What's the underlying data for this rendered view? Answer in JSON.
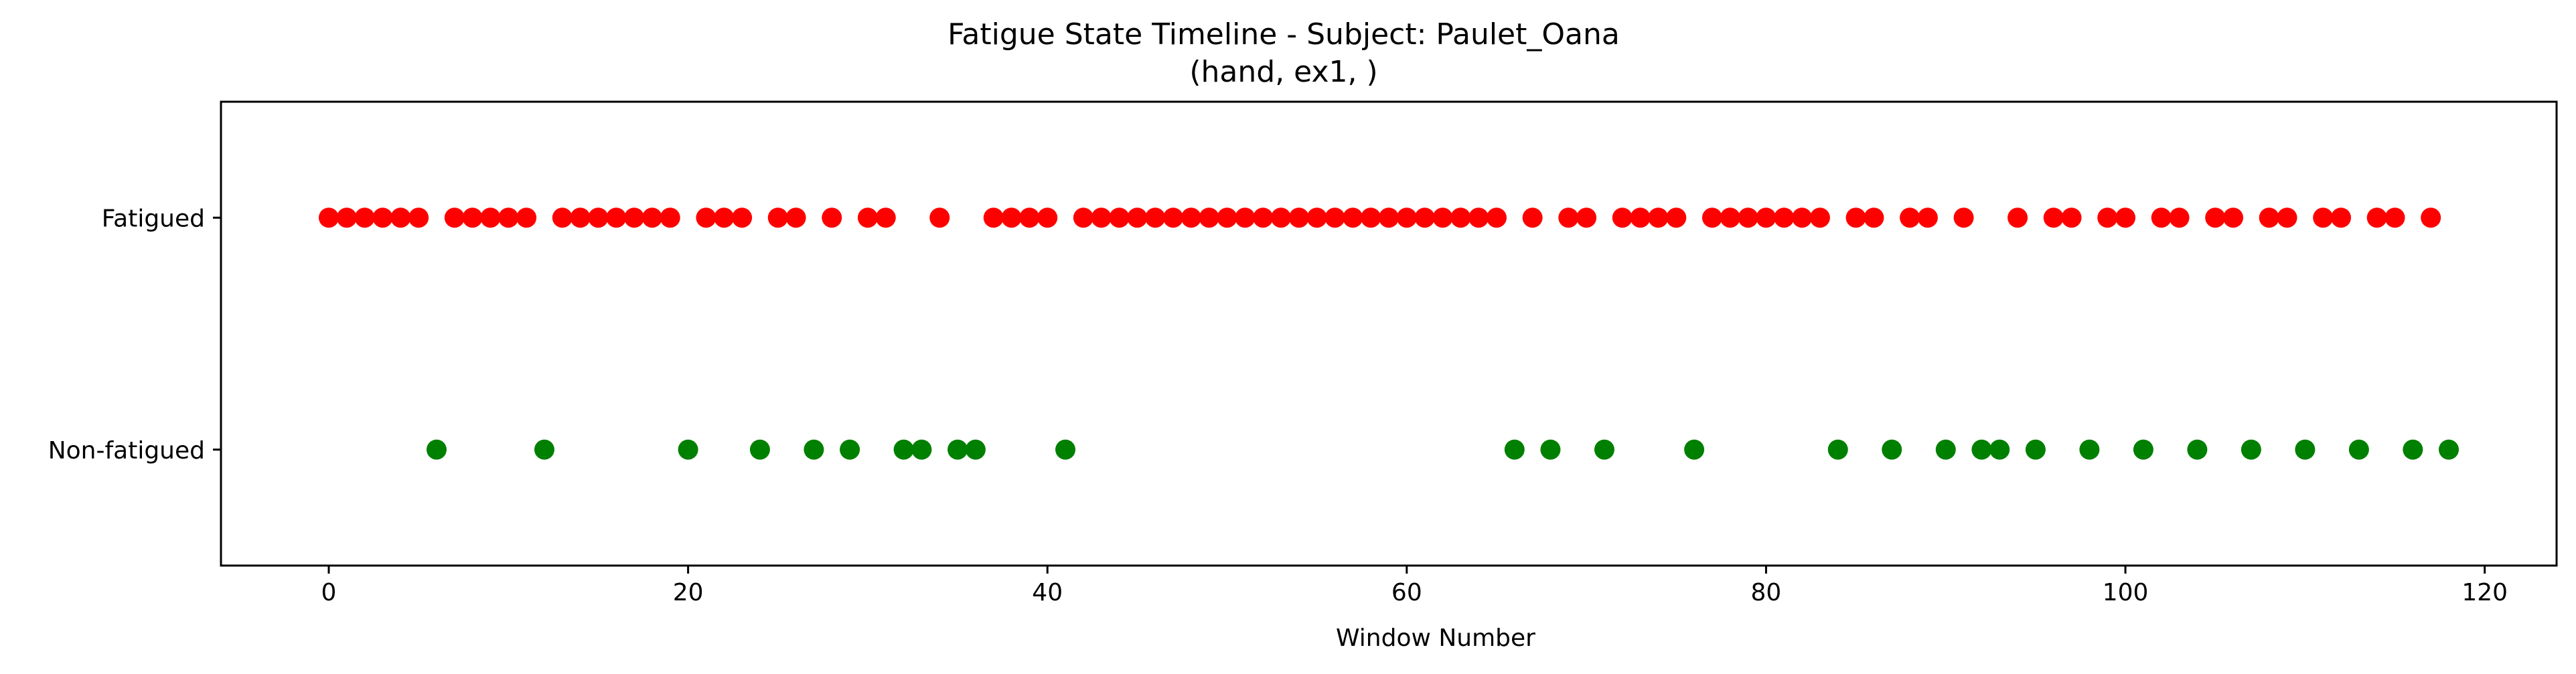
{
  "chart_data": {
    "type": "scatter",
    "title": "Fatigue State Timeline - Subject: Paulet_Oana",
    "subtitle": "(hand, ex1, )",
    "xlabel": "Window Number",
    "ylabel": "",
    "xlim": [
      -6,
      124
    ],
    "ylim": [
      -0.5,
      1.5
    ],
    "grid": false,
    "x_ticks": [
      0,
      20,
      40,
      60,
      80,
      100,
      120
    ],
    "x_tick_labels": [
      "0",
      "20",
      "40",
      "60",
      "80",
      "100",
      "120"
    ],
    "y_ticks": [
      1,
      0
    ],
    "y_tick_labels": [
      "Fatigued",
      "Non-fatigued"
    ],
    "colors": {
      "fatigued": "#ff0000",
      "non_fatigued": "#008000",
      "axes": "#000000"
    },
    "series": [
      {
        "state": 1,
        "color": "#ff0000",
        "x": [
          0,
          1,
          2,
          3,
          4,
          5,
          7,
          8,
          9,
          10,
          11,
          13,
          14,
          15,
          16,
          17,
          18,
          19,
          21,
          22,
          23,
          25,
          26,
          28,
          30,
          31,
          34,
          37,
          38,
          39,
          40,
          42,
          43,
          44,
          45,
          46,
          47,
          48,
          49,
          50,
          51,
          52,
          53,
          54,
          55,
          56,
          57,
          58,
          59,
          60,
          61,
          62,
          63,
          64,
          65,
          67,
          69,
          70,
          72,
          73,
          74,
          75,
          77,
          78,
          79,
          80,
          81,
          82,
          83,
          85,
          86,
          88,
          89,
          91,
          94,
          96,
          97,
          99,
          100,
          102,
          103,
          105,
          106,
          108,
          109,
          111,
          112,
          114,
          115,
          117
        ]
      },
      {
        "state": 0,
        "color": "#008000",
        "x": [
          6,
          12,
          20,
          24,
          27,
          29,
          32,
          33,
          35,
          36,
          41,
          66,
          68,
          71,
          76,
          84,
          87,
          90,
          92,
          93,
          95,
          98,
          101,
          104,
          107,
          110,
          113,
          116,
          118
        ]
      }
    ]
  }
}
